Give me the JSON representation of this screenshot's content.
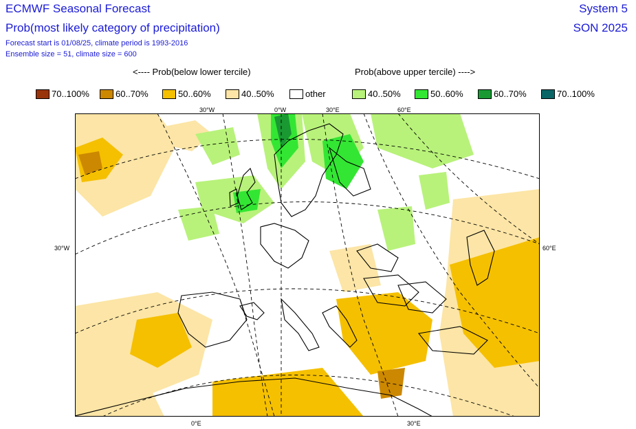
{
  "header": {
    "title": "ECMWF Seasonal Forecast",
    "subtitle": "Prob(most likely category of precipitation)",
    "forecast_info": "Forecast start is 01/08/25, climate period is 1993-2016",
    "ensemble_info": "Ensemble size = 51, climate size = 600",
    "system": "System 5",
    "season": "SON 2025"
  },
  "legend": {
    "left_heading": "<---- Prob(below lower tercile)",
    "right_heading": "Prob(above upper tercile) ---->",
    "items": [
      {
        "label": "70..100%",
        "color": "#99330a"
      },
      {
        "label": "60..70%",
        "color": "#cc8800"
      },
      {
        "label": "50..60%",
        "color": "#f5c000"
      },
      {
        "label": "40..50%",
        "color": "#fce5a6"
      },
      {
        "label": "other",
        "color": "#ffffff"
      },
      {
        "label": "40..50%",
        "color": "#b8f27a"
      },
      {
        "label": "50..60%",
        "color": "#33e633"
      },
      {
        "label": "60..70%",
        "color": "#1a9933"
      },
      {
        "label": "70..100%",
        "color": "#0a6666"
      }
    ]
  },
  "map": {
    "top_longitudes": [
      "30°W",
      "0°W",
      "30°E",
      "60°E"
    ],
    "bottom_longitudes": [
      "0°E",
      "30°E"
    ],
    "left_latitude": "30°W",
    "right_latitude": "60°E"
  }
}
